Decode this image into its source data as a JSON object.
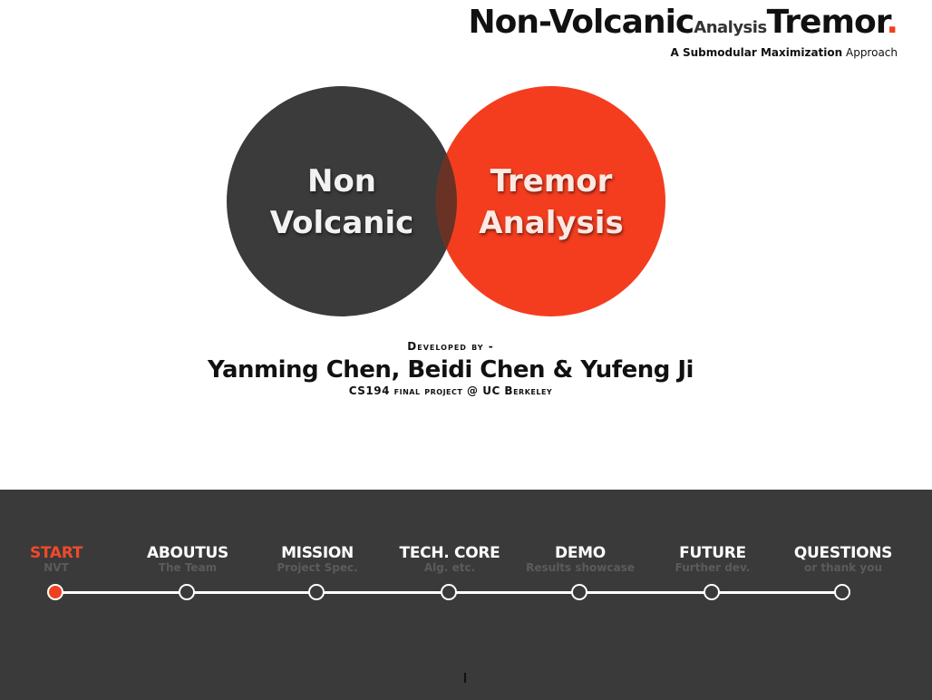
{
  "header": {
    "title_part1": "Non-Volcanic",
    "title_small": "Analysis",
    "title_part2": "Tremor",
    "title_dot": ".",
    "subtitle_bold": "A Submodular Maximization",
    "subtitle_rest": " Approach"
  },
  "venn": {
    "left_line1": "Non",
    "left_line2": "Volcanic",
    "right_line1": "Tremor",
    "right_line2": "Analysis",
    "colors": {
      "left": "#3b3b3b",
      "right": "#f43d1f"
    }
  },
  "credits": {
    "label": "Developed by -",
    "names": "Yanming Chen, Beidi Chen & Yufeng Ji",
    "project": "CS194 final project  @ UC Berkeley"
  },
  "nav": {
    "accent_color": "#f04020",
    "items": [
      {
        "label": "START",
        "sub": "NVT",
        "active": true
      },
      {
        "label": "ABOUTUS",
        "sub": "The Team",
        "active": false
      },
      {
        "label": "MISSION",
        "sub": "Project Spec.",
        "active": false
      },
      {
        "label": "TECH. CORE",
        "sub": "Alg. etc.",
        "active": false
      },
      {
        "label": "DEMO",
        "sub": "Results showcase",
        "active": false
      },
      {
        "label": "FUTURE",
        "sub": "Further dev.",
        "active": false
      },
      {
        "label": "QUESTIONS",
        "sub": "or thank you",
        "active": false
      }
    ]
  }
}
